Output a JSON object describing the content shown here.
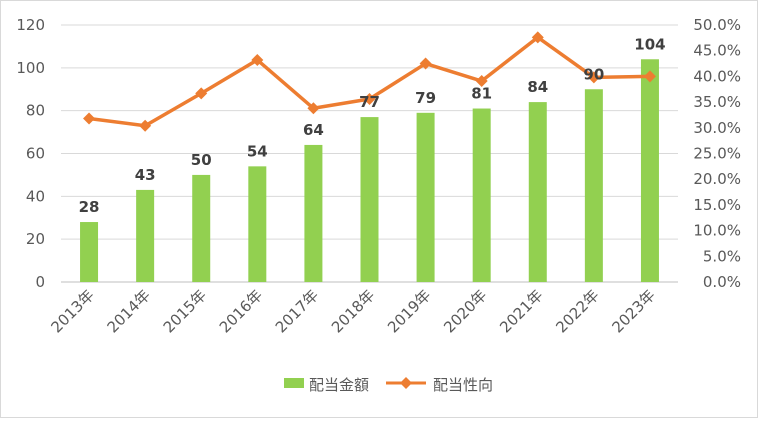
{
  "chart_data": {
    "type": "bar",
    "categories": [
      "2013年",
      "2014年",
      "2015年",
      "2016年",
      "2017年",
      "2018年",
      "2019年",
      "2020年",
      "2021年",
      "2022年",
      "2023年"
    ],
    "series": [
      {
        "name": "配当金額",
        "type": "bar",
        "axis": "left",
        "color": "#92d050",
        "values": [
          28,
          43,
          50,
          54,
          64,
          77,
          79,
          81,
          84,
          90,
          104
        ],
        "labels": [
          "28",
          "43",
          "50",
          "54",
          "64",
          "77",
          "79",
          "81",
          "84",
          "90",
          "104"
        ]
      },
      {
        "name": "配当性向",
        "type": "line",
        "axis": "right",
        "color": "#ed7d31",
        "marker": "diamond",
        "values": [
          31.8,
          30.4,
          36.7,
          43.2,
          33.8,
          35.6,
          42.5,
          39.1,
          47.6,
          39.8,
          40.0
        ]
      }
    ],
    "y_left": {
      "min": 0,
      "max": 120,
      "ticks": [
        "0",
        "20",
        "40",
        "60",
        "80",
        "100",
        "120"
      ]
    },
    "y_right": {
      "min": 0,
      "max": 50,
      "ticks": [
        "0.0%",
        "5.0%",
        "10.0%",
        "15.0%",
        "20.0%",
        "25.0%",
        "30.0%",
        "35.0%",
        "40.0%",
        "45.0%",
        "50.0%"
      ]
    },
    "grid": true,
    "legend": "bottom",
    "title": "",
    "xlabel": "",
    "ylabel": ""
  }
}
